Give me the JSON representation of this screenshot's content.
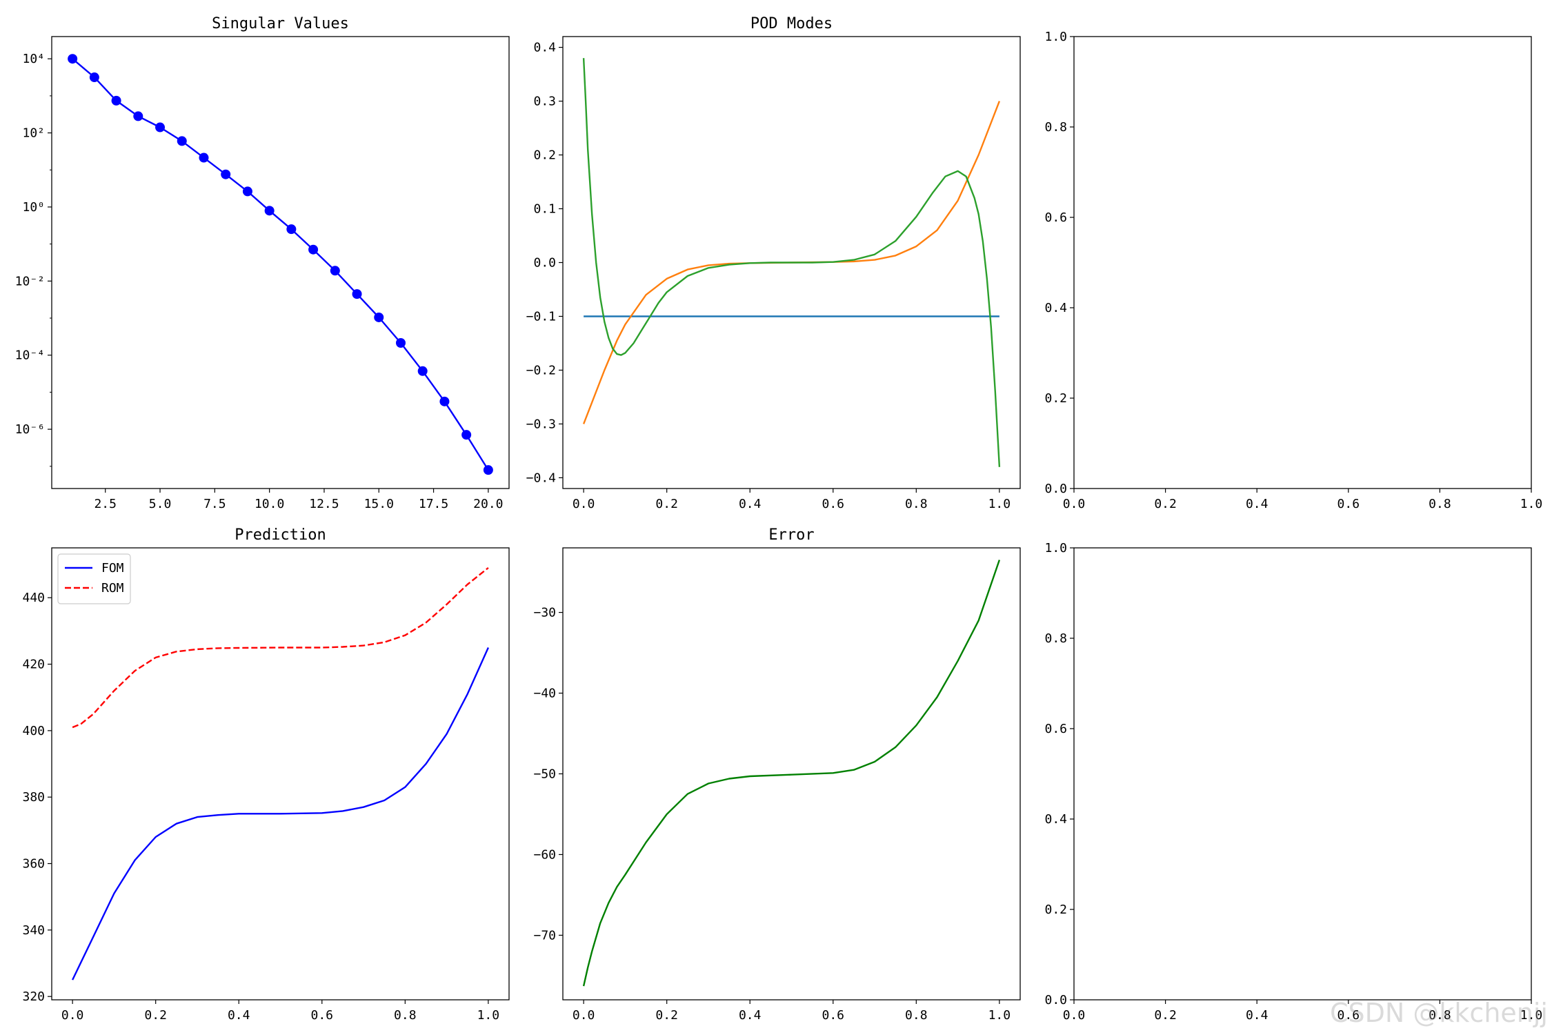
{
  "watermark": "CSDN @kkchenjj",
  "chart_data": [
    {
      "type": "line",
      "title": "Singular Values",
      "yscale": "log",
      "xlim": [
        0.05,
        20.95
      ],
      "ylim_log10": [
        -7.6,
        4.6
      ],
      "xticks": [
        2.5,
        5.0,
        7.5,
        10.0,
        12.5,
        15.0,
        17.5,
        20.0
      ],
      "xtick_labels": [
        "2.5",
        "5.0",
        "7.5",
        "10.0",
        "12.5",
        "15.0",
        "17.5",
        "20.0"
      ],
      "yticks_log10": [
        4,
        2,
        0,
        -2,
        -4,
        -6
      ],
      "ytick_labels": [
        "10⁴",
        "10²",
        "10⁰",
        "10⁻²",
        "10⁻⁴",
        "10⁻⁶"
      ],
      "series": [
        {
          "color": "#0000ff",
          "marker": "circle",
          "x": [
            1,
            2,
            3,
            4,
            5,
            6,
            7,
            8,
            9,
            10,
            11,
            12,
            13,
            14,
            15,
            16,
            17,
            18,
            19,
            20
          ],
          "log10_y": [
            4.0,
            3.5,
            2.87,
            2.45,
            2.15,
            1.78,
            1.33,
            0.88,
            0.42,
            -0.1,
            -0.6,
            -1.15,
            -1.72,
            -2.35,
            -2.98,
            -3.67,
            -4.43,
            -5.25,
            -6.15,
            -7.1
          ]
        }
      ]
    },
    {
      "type": "line",
      "title": "POD Modes",
      "xlim": [
        -0.05,
        1.05
      ],
      "ylim": [
        -0.42,
        0.42
      ],
      "xticks": [
        0.0,
        0.2,
        0.4,
        0.6,
        0.8,
        1.0
      ],
      "xtick_labels": [
        "0.0",
        "0.2",
        "0.4",
        "0.6",
        "0.8",
        "1.0"
      ],
      "yticks": [
        -0.4,
        -0.3,
        -0.2,
        -0.1,
        0.0,
        0.1,
        0.2,
        0.3,
        0.4
      ],
      "ytick_labels": [
        "−0.4",
        "−0.3",
        "−0.2",
        "−0.1",
        "0.0",
        "0.1",
        "0.2",
        "0.3",
        "0.4"
      ],
      "series": [
        {
          "color": "#1f77b4",
          "x": [
            0.0,
            1.0
          ],
          "y": [
            -0.1,
            -0.1
          ]
        },
        {
          "color": "#ff7f0e",
          "x": [
            0.0,
            0.02,
            0.05,
            0.08,
            0.1,
            0.15,
            0.2,
            0.25,
            0.3,
            0.35,
            0.4,
            0.5,
            0.6,
            0.65,
            0.7,
            0.75,
            0.8,
            0.85,
            0.9,
            0.95,
            1.0
          ],
          "y": [
            -0.3,
            -0.26,
            -0.2,
            -0.145,
            -0.115,
            -0.06,
            -0.03,
            -0.013,
            -0.005,
            -0.002,
            -0.001,
            0.0,
            0.001,
            0.002,
            0.005,
            0.013,
            0.03,
            0.06,
            0.115,
            0.2,
            0.3
          ]
        },
        {
          "color": "#2ca02c",
          "x": [
            0.0,
            0.005,
            0.01,
            0.02,
            0.03,
            0.04,
            0.05,
            0.06,
            0.07,
            0.08,
            0.09,
            0.1,
            0.12,
            0.14,
            0.16,
            0.18,
            0.2,
            0.25,
            0.3,
            0.35,
            0.4,
            0.45,
            0.5,
            0.55,
            0.6,
            0.65,
            0.7,
            0.75,
            0.8,
            0.84,
            0.87,
            0.9,
            0.92,
            0.94,
            0.95,
            0.96,
            0.97,
            0.98,
            0.99,
            1.0
          ],
          "y": [
            0.38,
            0.3,
            0.21,
            0.09,
            0.0,
            -0.065,
            -0.11,
            -0.14,
            -0.16,
            -0.17,
            -0.172,
            -0.168,
            -0.15,
            -0.125,
            -0.1,
            -0.075,
            -0.055,
            -0.025,
            -0.01,
            -0.004,
            -0.001,
            0.0,
            0.0,
            0.0,
            0.001,
            0.005,
            0.015,
            0.04,
            0.085,
            0.13,
            0.16,
            0.17,
            0.16,
            0.12,
            0.09,
            0.04,
            -0.03,
            -0.12,
            -0.24,
            -0.38
          ]
        }
      ]
    },
    {
      "type": "line",
      "title": "",
      "xlim": [
        0.0,
        1.0
      ],
      "ylim": [
        0.0,
        1.0
      ],
      "xticks": [
        0.0,
        0.2,
        0.4,
        0.6,
        0.8,
        1.0
      ],
      "xtick_labels": [
        "0.0",
        "0.2",
        "0.4",
        "0.6",
        "0.8",
        "1.0"
      ],
      "yticks": [
        0.0,
        0.2,
        0.4,
        0.6,
        0.8,
        1.0
      ],
      "ytick_labels": [
        "0.0",
        "0.2",
        "0.4",
        "0.6",
        "0.8",
        "1.0"
      ],
      "series": []
    },
    {
      "type": "line",
      "title": "Prediction",
      "xlim": [
        -0.05,
        1.05
      ],
      "ylim": [
        319,
        455
      ],
      "xticks": [
        0.0,
        0.2,
        0.4,
        0.6,
        0.8,
        1.0
      ],
      "xtick_labels": [
        "0.0",
        "0.2",
        "0.4",
        "0.6",
        "0.8",
        "1.0"
      ],
      "yticks": [
        320,
        340,
        360,
        380,
        400,
        420,
        440
      ],
      "ytick_labels": [
        "320",
        "340",
        "360",
        "380",
        "400",
        "420",
        "440"
      ],
      "legend": "upper left",
      "series": [
        {
          "name": "FOM",
          "color": "#0000ff",
          "dash": "solid",
          "x": [
            0.0,
            0.05,
            0.1,
            0.15,
            0.2,
            0.25,
            0.3,
            0.35,
            0.4,
            0.5,
            0.6,
            0.65,
            0.7,
            0.75,
            0.8,
            0.85,
            0.9,
            0.95,
            1.0
          ],
          "y": [
            325,
            338,
            351,
            361,
            368,
            372,
            374,
            374.6,
            375,
            375,
            375.2,
            375.8,
            377,
            379,
            383,
            390,
            399,
            411,
            425
          ]
        },
        {
          "name": "ROM",
          "color": "#ff0000",
          "dash": "dashed",
          "x": [
            0.0,
            0.02,
            0.05,
            0.1,
            0.15,
            0.2,
            0.25,
            0.3,
            0.35,
            0.4,
            0.5,
            0.6,
            0.65,
            0.7,
            0.75,
            0.8,
            0.85,
            0.9,
            0.95,
            1.0
          ],
          "y": [
            401,
            402,
            405,
            412,
            418,
            422,
            423.8,
            424.5,
            424.8,
            424.9,
            425,
            425,
            425.2,
            425.6,
            426.6,
            428.7,
            432.5,
            438,
            444,
            449
          ]
        }
      ]
    },
    {
      "type": "line",
      "title": "Error",
      "xlim": [
        -0.05,
        1.05
      ],
      "ylim": [
        -78,
        -22
      ],
      "xticks": [
        0.0,
        0.2,
        0.4,
        0.6,
        0.8,
        1.0
      ],
      "xtick_labels": [
        "0.0",
        "0.2",
        "0.4",
        "0.6",
        "0.8",
        "1.0"
      ],
      "yticks": [
        -70,
        -60,
        -50,
        -40,
        -30
      ],
      "ytick_labels": [
        "−70",
        "−60",
        "−50",
        "−40",
        "−30"
      ],
      "series": [
        {
          "color": "#008000",
          "x": [
            0.0,
            0.01,
            0.02,
            0.04,
            0.06,
            0.08,
            0.1,
            0.15,
            0.2,
            0.25,
            0.3,
            0.35,
            0.4,
            0.5,
            0.6,
            0.65,
            0.7,
            0.75,
            0.8,
            0.85,
            0.9,
            0.95,
            1.0
          ],
          "y": [
            -76.3,
            -74,
            -72,
            -68.5,
            -66,
            -64,
            -62.5,
            -58.5,
            -55,
            -52.5,
            -51.2,
            -50.6,
            -50.3,
            -50.1,
            -49.9,
            -49.5,
            -48.5,
            -46.7,
            -44,
            -40.5,
            -36,
            -31,
            -23.5
          ]
        }
      ]
    },
    {
      "type": "line",
      "title": "",
      "xlim": [
        0.0,
        1.0
      ],
      "ylim": [
        0.0,
        1.0
      ],
      "xticks": [
        0.0,
        0.2,
        0.4,
        0.6,
        0.8,
        1.0
      ],
      "xtick_labels": [
        "0.0",
        "0.2",
        "0.4",
        "0.6",
        "0.8",
        "1.0"
      ],
      "yticks": [
        0.0,
        0.2,
        0.4,
        0.6,
        0.8,
        1.0
      ],
      "ytick_labels": [
        "0.0",
        "0.2",
        "0.4",
        "0.6",
        "0.8",
        "1.0"
      ],
      "series": []
    }
  ]
}
